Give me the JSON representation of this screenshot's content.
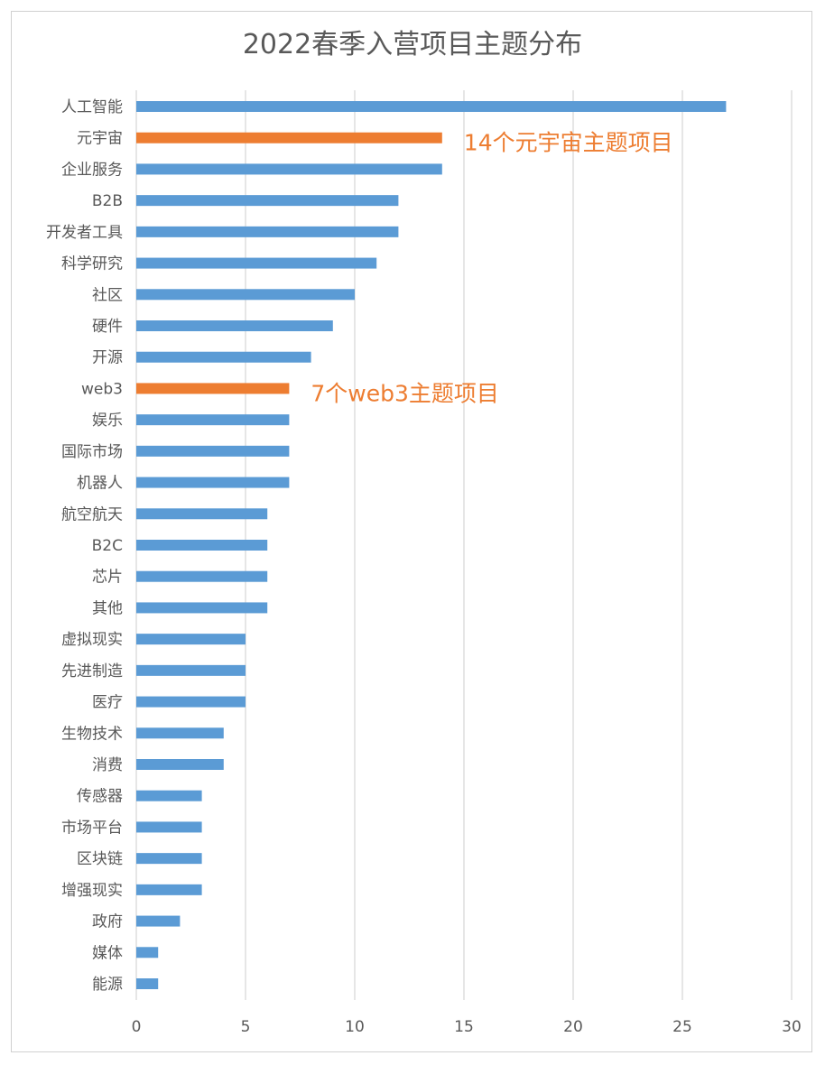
{
  "chart_data": {
    "type": "bar",
    "orientation": "horizontal",
    "title": "2022春季入营项目主题分布",
    "xlabel": "",
    "ylabel": "",
    "xlim": [
      0,
      30
    ],
    "xticks": [
      0,
      5,
      10,
      15,
      20,
      25,
      30
    ],
    "grid": true,
    "categories": [
      "人工智能",
      "元宇宙",
      "企业服务",
      "B2B",
      "开发者工具",
      "科学研究",
      "社区",
      "硬件",
      "开源",
      "web3",
      "娱乐",
      "国际市场",
      "机器人",
      "航空航天",
      "B2C",
      "芯片",
      "其他",
      "虚拟现实",
      "先进制造",
      "医疗",
      "生物技术",
      "消费",
      "传感器",
      "市场平台",
      "区块链",
      "增强现实",
      "政府",
      "媒体",
      "能源"
    ],
    "values": [
      27,
      14,
      14,
      12,
      12,
      11,
      10,
      9,
      8,
      7,
      7,
      7,
      7,
      6,
      6,
      6,
      6,
      5,
      5,
      5,
      4,
      4,
      3,
      3,
      3,
      3,
      2,
      1,
      1
    ],
    "highlighted": [
      "元宇宙",
      "web3"
    ],
    "colors": {
      "default": "#5b9bd5",
      "highlight": "#ed7d31",
      "grid": "#d9d9d9",
      "text": "#595959"
    },
    "annotations": [
      {
        "category": "元宇宙",
        "text": "14个元宇宙主题项目"
      },
      {
        "category": "web3",
        "text": "7个web3主题项目"
      }
    ]
  }
}
